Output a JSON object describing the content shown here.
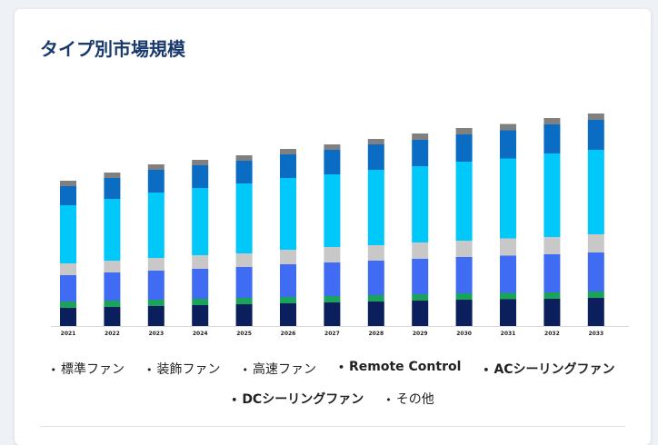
{
  "card": {
    "title": "タイプ別市場規模"
  },
  "chart_data": {
    "type": "bar",
    "stacked": true,
    "categories": [
      "2021",
      "2022",
      "2023",
      "2024",
      "2025",
      "2026",
      "2027",
      "2028",
      "2029",
      "2030",
      "2031",
      "2032",
      "2033"
    ],
    "series": [
      {
        "name": "標準ファン",
        "color": "#0b1f5c",
        "values": [
          20,
          21,
          22,
          23,
          24,
          25,
          26,
          27,
          28,
          29,
          29.5,
          30,
          31
        ]
      },
      {
        "name": "装飾ファン",
        "color": "#1aa35a",
        "values": [
          7,
          7,
          7,
          7,
          7,
          7,
          7,
          7,
          7,
          7,
          7,
          7,
          7
        ]
      },
      {
        "name": "高速ファン",
        "color": "#3f6cf2",
        "values": [
          29,
          31,
          32,
          33,
          34,
          36,
          37,
          38,
          39,
          40,
          41,
          42,
          43
        ]
      },
      {
        "name": "Remote Control",
        "color": "#c8c8c8",
        "values": [
          13,
          13,
          14,
          15,
          15,
          16,
          17,
          17,
          18,
          18,
          19,
          19,
          20
        ]
      },
      {
        "name": "ACシーリングファン",
        "color": "#00c8f8",
        "values": [
          64,
          68,
          72,
          74,
          77,
          79,
          80,
          83,
          84,
          87,
          88,
          92,
          93
        ]
      },
      {
        "name": "DCシーリングファン",
        "color": "#0a6cc2",
        "values": [
          21,
          23,
          25,
          25,
          25,
          26,
          27,
          28,
          29,
          30,
          31,
          32,
          33
        ]
      },
      {
        "name": "その他",
        "color": "#808080",
        "values": [
          6,
          6,
          6,
          6,
          6,
          6,
          6,
          6,
          7,
          7,
          7,
          7,
          7
        ]
      }
    ],
    "ylim": [
      0,
      230
    ],
    "grid": false,
    "legend_position": "bottom"
  },
  "legend": {
    "row1": [
      "標準ファン",
      "装飾ファン",
      "高速ファン",
      "Remote Control",
      "ACシーリングファン"
    ],
    "row2": [
      "DCシーリングファン",
      "その他"
    ],
    "bullet": "•"
  }
}
